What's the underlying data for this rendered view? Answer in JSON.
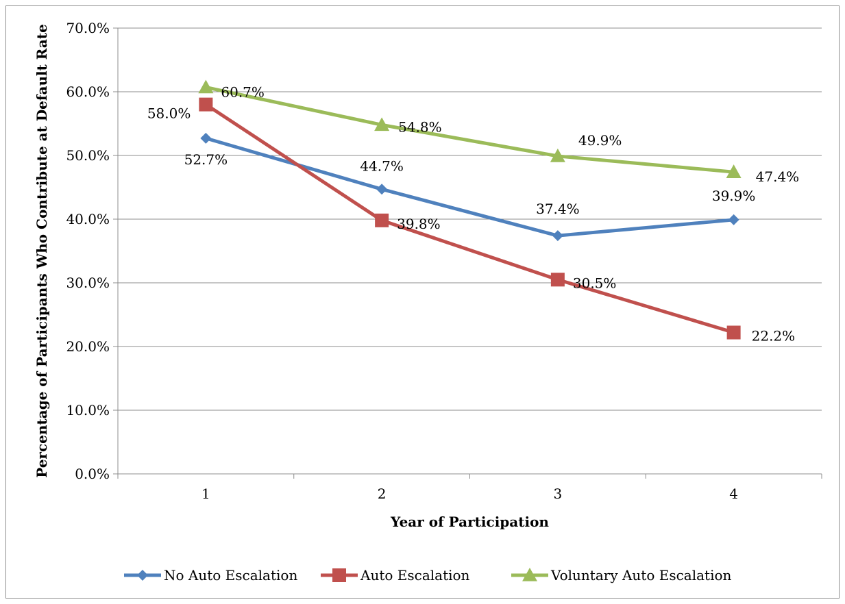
{
  "chart_data": {
    "type": "line",
    "x": [
      1,
      2,
      3,
      4
    ],
    "x_tick_labels": [
      "1",
      "2",
      "3",
      "4"
    ],
    "xlabel": "Year of Participation",
    "ylabel": "Percentage of Participants Who Contribute at Default Rate",
    "ylim": [
      0,
      70
    ],
    "y_tick_values": [
      0,
      10,
      20,
      30,
      40,
      50,
      60,
      70
    ],
    "y_tick_labels": [
      "0.0%",
      "10.0%",
      "20.0%",
      "30.0%",
      "40.0%",
      "50.0%",
      "60.0%",
      "70.0%"
    ],
    "grid": "horizontal",
    "legend_position": "bottom",
    "series": [
      {
        "name": "No Auto Escalation",
        "color": "#4f81bd",
        "marker": "diamond",
        "values": [
          52.7,
          44.7,
          37.4,
          39.9
        ],
        "labels": [
          "52.7%",
          "44.7%",
          "37.4%",
          "39.9%"
        ]
      },
      {
        "name": "Auto Escalation",
        "color": "#c0504d",
        "marker": "square",
        "values": [
          58.0,
          39.8,
          30.5,
          22.2
        ],
        "labels": [
          "58.0%",
          "39.8%",
          "30.5%",
          "22.2%"
        ]
      },
      {
        "name": "Voluntary Auto Escalation",
        "color": "#9bbb59",
        "marker": "triangle",
        "values": [
          60.7,
          54.8,
          49.9,
          47.4
        ],
        "labels": [
          "60.7%",
          "54.8%",
          "49.9%",
          "47.4%"
        ]
      }
    ]
  }
}
